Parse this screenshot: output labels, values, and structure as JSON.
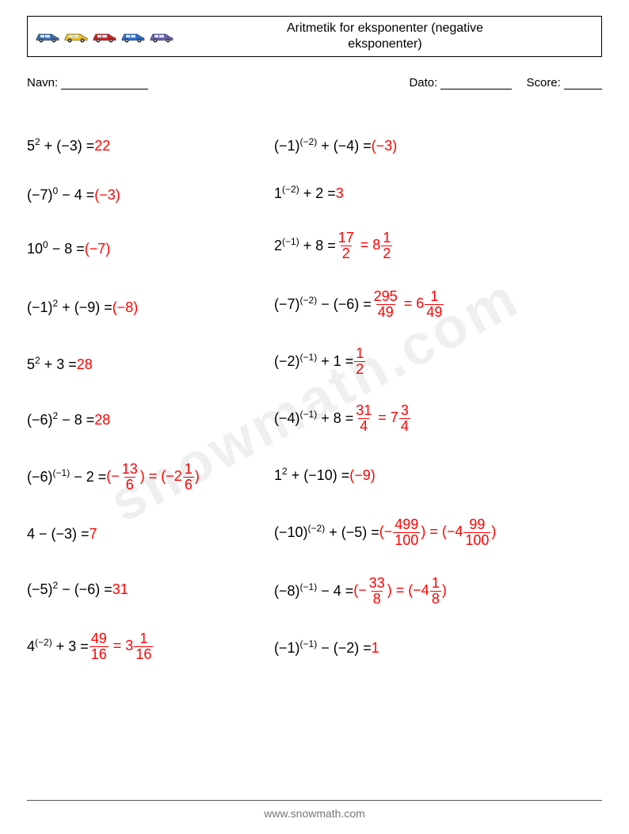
{
  "header": {
    "title_line1": "Aritmetik for eksponenter (negative",
    "title_line2": "eksponenter)",
    "car_colors": [
      "#3b6fb0",
      "#f2c21a",
      "#d42121",
      "#2a6ed4",
      "#6a5fae"
    ]
  },
  "meta": {
    "name_label": "Navn:",
    "date_label": "Dato:",
    "score_label": "Score:"
  },
  "left_heights": [
    62,
    62,
    74,
    74,
    70,
    70,
    74,
    70,
    70,
    74
  ],
  "right_heights": [
    62,
    58,
    74,
    74,
    70,
    74,
    70,
    74,
    74,
    70
  ],
  "left": [
    {
      "expr": [
        [
          "5",
          ""
        ],
        [
          "",
          "2"
        ],
        [
          " + (−3) = ",
          ""
        ]
      ],
      "ans": [
        [
          "22",
          ""
        ]
      ]
    },
    {
      "expr": [
        [
          "(−7)",
          ""
        ],
        [
          "",
          "0"
        ],
        [
          " − 4 = ",
          ""
        ]
      ],
      "ans": [
        [
          "(−3)",
          ""
        ]
      ]
    },
    {
      "expr": [
        [
          "10",
          ""
        ],
        [
          "",
          "0"
        ],
        [
          " − 8 = ",
          ""
        ]
      ],
      "ans": [
        [
          "(−7)",
          ""
        ]
      ]
    },
    {
      "expr": [
        [
          "(−1)",
          ""
        ],
        [
          "",
          "2"
        ],
        [
          " + (−9) = ",
          ""
        ]
      ],
      "ans": [
        [
          "(−8)",
          ""
        ]
      ]
    },
    {
      "expr": [
        [
          "5",
          ""
        ],
        [
          "",
          "2"
        ],
        [
          " + 3 = ",
          ""
        ]
      ],
      "ans": [
        [
          "28",
          ""
        ]
      ]
    },
    {
      "expr": [
        [
          "(−6)",
          ""
        ],
        [
          "",
          "2"
        ],
        [
          " − 8 = ",
          ""
        ]
      ],
      "ans": [
        [
          "28",
          ""
        ]
      ]
    },
    {
      "expr": [
        [
          "(−6)",
          ""
        ],
        [
          "",
          "(−1)"
        ],
        [
          " − 2 = ",
          ""
        ]
      ],
      "ans": [
        [
          "(−",
          ""
        ],
        [
          "FRAC",
          "13",
          "6"
        ],
        [
          ") = (−2",
          ""
        ],
        [
          "FRAC",
          "1",
          "6"
        ],
        [
          ")",
          ""
        ]
      ]
    },
    {
      "expr": [
        [
          "4 − (−3) = ",
          ""
        ]
      ],
      "ans": [
        [
          "7",
          ""
        ]
      ]
    },
    {
      "expr": [
        [
          "(−5)",
          ""
        ],
        [
          "",
          "2"
        ],
        [
          " − (−6) = ",
          ""
        ]
      ],
      "ans": [
        [
          "31",
          ""
        ]
      ]
    },
    {
      "expr": [
        [
          "4",
          ""
        ],
        [
          "",
          "(−2)"
        ],
        [
          " + 3 = ",
          ""
        ]
      ],
      "ans": [
        [
          "FRAC",
          "49",
          "16"
        ],
        [
          " = 3",
          ""
        ],
        [
          "FRAC",
          "1",
          "16"
        ]
      ]
    }
  ],
  "right": [
    {
      "expr": [
        [
          "(−1)",
          ""
        ],
        [
          "",
          "(−2)"
        ],
        [
          " + (−4) = ",
          ""
        ]
      ],
      "ans": [
        [
          "(−3)",
          ""
        ]
      ]
    },
    {
      "expr": [
        [
          "1",
          ""
        ],
        [
          "",
          "(−2)"
        ],
        [
          " + 2 = ",
          ""
        ]
      ],
      "ans": [
        [
          "3",
          ""
        ]
      ]
    },
    {
      "expr": [
        [
          "2",
          ""
        ],
        [
          "",
          "(−1)"
        ],
        [
          " + 8 = ",
          ""
        ]
      ],
      "ans": [
        [
          "FRAC",
          "17",
          "2"
        ],
        [
          " = 8",
          ""
        ],
        [
          "FRAC",
          "1",
          "2"
        ]
      ]
    },
    {
      "expr": [
        [
          "(−7)",
          ""
        ],
        [
          "",
          "(−2)"
        ],
        [
          " − (−6) = ",
          ""
        ]
      ],
      "ans": [
        [
          "FRAC",
          "295",
          "49"
        ],
        [
          " = 6",
          ""
        ],
        [
          "FRAC",
          "1",
          "49"
        ]
      ]
    },
    {
      "expr": [
        [
          "(−2)",
          ""
        ],
        [
          "",
          "(−1)"
        ],
        [
          " + 1 = ",
          ""
        ]
      ],
      "ans": [
        [
          "FRAC",
          "1",
          "2"
        ]
      ]
    },
    {
      "expr": [
        [
          "(−4)",
          ""
        ],
        [
          "",
          "(−1)"
        ],
        [
          " + 8 = ",
          ""
        ]
      ],
      "ans": [
        [
          "FRAC",
          "31",
          "4"
        ],
        [
          " = 7",
          ""
        ],
        [
          "FRAC",
          "3",
          "4"
        ]
      ]
    },
    {
      "expr": [
        [
          "1",
          ""
        ],
        [
          "",
          "2"
        ],
        [
          " + (−10) = ",
          ""
        ]
      ],
      "ans": [
        [
          "(−9)",
          ""
        ]
      ]
    },
    {
      "expr": [
        [
          "(−10)",
          ""
        ],
        [
          "",
          "(−2)"
        ],
        [
          " + (−5) = ",
          ""
        ]
      ],
      "ans": [
        [
          "(−",
          ""
        ],
        [
          "FRAC",
          "499",
          "100"
        ],
        [
          ") = (−4",
          ""
        ],
        [
          "FRAC",
          "99",
          "100"
        ],
        [
          ")",
          ""
        ]
      ]
    },
    {
      "expr": [
        [
          "(−8)",
          ""
        ],
        [
          "",
          "(−1)"
        ],
        [
          " − 4 = ",
          ""
        ]
      ],
      "ans": [
        [
          "(−",
          ""
        ],
        [
          "FRAC",
          "33",
          "8"
        ],
        [
          ") = (−4",
          ""
        ],
        [
          "FRAC",
          "1",
          "8"
        ],
        [
          ")",
          ""
        ]
      ]
    },
    {
      "expr": [
        [
          "(−1)",
          ""
        ],
        [
          "",
          "(−1)"
        ],
        [
          " − (−2) = ",
          ""
        ]
      ],
      "ans": [
        [
          "1",
          ""
        ]
      ]
    }
  ],
  "footer": {
    "text": "www.snowmath.com"
  },
  "watermark": "snowmath.com",
  "colors": {
    "answer": "#ff0000",
    "text": "#000000",
    "footer": "#888888"
  }
}
